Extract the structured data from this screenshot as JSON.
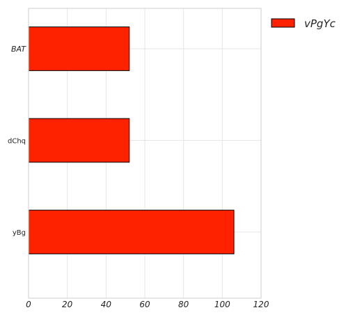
{
  "chart_data": {
    "type": "bar",
    "orientation": "horizontal",
    "categories": [
      "BAT",
      "dChq",
      "yBg"
    ],
    "category_label_italic": [
      true,
      false,
      false
    ],
    "series": [
      {
        "name": "vPgYc",
        "values": [
          52,
          52,
          106
        ]
      }
    ],
    "xlim": [
      0,
      120
    ],
    "xticks": [
      0,
      20,
      40,
      60,
      80,
      100,
      120
    ],
    "xlabel": "",
    "ylabel": "",
    "title": "",
    "grid": true,
    "legend_position": "top-right outside",
    "colors": {
      "bar_fill": "#ff2200",
      "bar_edge": "#000000",
      "grid": "#e6e6e6",
      "frame": "#cccccc"
    }
  }
}
